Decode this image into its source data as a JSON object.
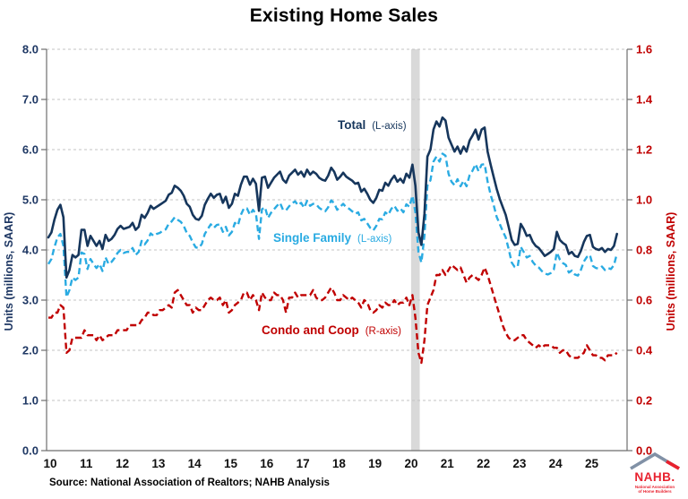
{
  "title": "Existing Home Sales",
  "source": "Source: National Association of Realtors; NAHB Analysis",
  "logo": {
    "name": "NAHB.",
    "tagline_line1": "National Association",
    "tagline_line2": "of Home Builders"
  },
  "colors": {
    "left_axis_text": "#1f3864",
    "right_axis_text": "#c00000",
    "x_axis_text": "#111111",
    "gridline": "#c3c3c3",
    "axis_line": "#6e6e6e",
    "recession_band": "#d9d9d9"
  },
  "chart_data": {
    "type": "line",
    "title": "Existing Home Sales",
    "frequency": "monthly",
    "x_start": "2010-01",
    "x_end": "2025-10",
    "grid": true,
    "recession_band": {
      "start": "2020-02",
      "end": "2020-04"
    },
    "x_axis": {
      "ticks": [
        "10",
        "11",
        "12",
        "13",
        "14",
        "15",
        "16",
        "17",
        "18",
        "19",
        "20",
        "21",
        "22",
        "23",
        "24",
        "25"
      ]
    },
    "left_axis": {
      "label": "Units (millions, SAAR)",
      "min": 0,
      "max": 8,
      "ticks": [
        "0.0",
        "1.0",
        "2.0",
        "3.0",
        "4.0",
        "5.0",
        "6.0",
        "7.0",
        "8.0"
      ]
    },
    "right_axis": {
      "label": "Units (millions, SAAR)",
      "min": 0,
      "max": 1.6,
      "ticks": [
        "0.0",
        "0.2",
        "0.4",
        "0.6",
        "0.8",
        "1.0",
        "1.2",
        "1.4",
        "1.6"
      ]
    },
    "series": [
      {
        "name": "Total",
        "label": "Total",
        "axis_note": "(L-axis)",
        "axis": "left",
        "style": "solid",
        "color": "#16365c",
        "values": [
          4.25,
          4.35,
          4.6,
          4.8,
          4.9,
          4.65,
          3.45,
          3.6,
          3.9,
          3.85,
          3.9,
          4.4,
          4.4,
          4.08,
          4.28,
          4.18,
          4.08,
          4.18,
          4.02,
          4.3,
          4.18,
          4.22,
          4.3,
          4.42,
          4.48,
          4.42,
          4.44,
          4.46,
          4.54,
          4.4,
          4.46,
          4.7,
          4.64,
          4.74,
          4.88,
          4.82,
          4.86,
          4.9,
          4.94,
          4.98,
          5.1,
          5.14,
          5.28,
          5.24,
          5.18,
          5.08,
          4.92,
          4.86,
          4.7,
          4.62,
          4.6,
          4.68,
          4.9,
          5.02,
          5.12,
          5.04,
          5.1,
          5.12,
          4.94,
          5.06,
          4.84,
          4.92,
          5.12,
          5.08,
          5.3,
          5.46,
          5.46,
          5.3,
          5.42,
          5.32,
          4.78,
          5.44,
          5.46,
          5.24,
          5.34,
          5.44,
          5.5,
          5.56,
          5.4,
          5.34,
          5.48,
          5.54,
          5.6,
          5.5,
          5.56,
          5.46,
          5.6,
          5.5,
          5.56,
          5.52,
          5.44,
          5.4,
          5.38,
          5.48,
          5.64,
          5.56,
          5.4,
          5.46,
          5.54,
          5.46,
          5.42,
          5.38,
          5.32,
          5.34,
          5.16,
          5.22,
          5.12,
          5.0,
          4.94,
          5.04,
          5.2,
          5.18,
          5.34,
          5.28,
          5.4,
          5.48,
          5.36,
          5.42,
          5.34,
          5.52,
          5.44,
          5.7,
          5.28,
          4.35,
          4.1,
          4.72,
          5.86,
          6.0,
          6.4,
          6.56,
          6.46,
          6.64,
          6.58,
          6.24,
          6.1,
          5.96,
          6.06,
          5.92,
          6.06,
          5.96,
          6.18,
          6.28,
          6.4,
          6.2,
          6.4,
          6.44,
          5.96,
          5.7,
          5.46,
          5.22,
          5.02,
          4.86,
          4.7,
          4.46,
          4.2,
          4.1,
          4.12,
          4.52,
          4.42,
          4.28,
          4.3,
          4.16,
          4.08,
          4.04,
          3.96,
          3.88,
          3.92,
          3.96,
          4.02,
          4.36,
          4.2,
          4.14,
          4.1,
          3.92,
          3.96,
          3.88,
          3.86,
          3.98,
          4.16,
          4.28,
          4.3,
          4.06,
          4.02,
          4.0,
          4.04,
          3.96,
          4.02,
          4.0,
          4.08,
          4.32
        ]
      },
      {
        "name": "Single Family",
        "label": "Single Family",
        "axis_note": "(L-axis)",
        "axis": "left",
        "style": "dashed",
        "color": "#2aabe2",
        "values": [
          3.72,
          3.82,
          4.05,
          4.25,
          4.32,
          4.08,
          3.06,
          3.2,
          3.45,
          3.4,
          3.45,
          3.95,
          3.92,
          3.62,
          3.82,
          3.72,
          3.64,
          3.72,
          3.58,
          3.85,
          3.72,
          3.76,
          3.84,
          3.94,
          4.0,
          3.94,
          3.96,
          3.96,
          4.04,
          3.9,
          3.96,
          4.18,
          4.11,
          4.19,
          4.33,
          4.28,
          4.32,
          4.34,
          4.38,
          4.41,
          4.52,
          4.57,
          4.65,
          4.6,
          4.56,
          4.48,
          4.34,
          4.28,
          4.15,
          4.05,
          4.04,
          4.12,
          4.32,
          4.42,
          4.51,
          4.44,
          4.5,
          4.51,
          4.36,
          4.46,
          4.29,
          4.36,
          4.54,
          4.49,
          4.7,
          4.83,
          4.83,
          4.7,
          4.8,
          4.72,
          4.22,
          4.81,
          4.85,
          4.64,
          4.74,
          4.81,
          4.88,
          4.94,
          4.8,
          4.79,
          4.87,
          4.93,
          4.97,
          4.89,
          4.94,
          4.84,
          4.98,
          4.88,
          4.92,
          4.91,
          4.84,
          4.8,
          4.77,
          4.85,
          4.99,
          4.93,
          4.8,
          4.86,
          4.92,
          4.85,
          4.82,
          4.77,
          4.72,
          4.75,
          4.59,
          4.62,
          4.53,
          4.44,
          4.39,
          4.48,
          4.62,
          4.61,
          4.75,
          4.7,
          4.82,
          4.88,
          4.78,
          4.83,
          4.75,
          4.91,
          4.86,
          5.08,
          4.75,
          3.96,
          3.75,
          4.28,
          5.28,
          5.39,
          5.76,
          5.86,
          5.76,
          5.92,
          5.88,
          5.52,
          5.36,
          5.29,
          5.41,
          5.27,
          5.38,
          5.27,
          5.49,
          5.58,
          5.71,
          5.57,
          5.7,
          5.71,
          5.36,
          5.1,
          4.9,
          4.66,
          4.52,
          4.38,
          4.25,
          4.02,
          3.75,
          3.66,
          3.67,
          4.06,
          3.96,
          3.85,
          3.88,
          3.76,
          3.69,
          3.65,
          3.58,
          3.53,
          3.51,
          3.54,
          3.61,
          3.95,
          3.81,
          3.74,
          3.7,
          3.55,
          3.59,
          3.51,
          3.49,
          3.6,
          3.77,
          3.86,
          3.9,
          3.68,
          3.64,
          3.63,
          3.67,
          3.6,
          3.64,
          3.62,
          3.7,
          3.93
        ]
      },
      {
        "name": "Condo and Coop",
        "label": "Condo and Coop",
        "axis_note": "(R-axis)",
        "axis": "right",
        "style": "dashed",
        "color": "#c00000",
        "values": [
          0.53,
          0.53,
          0.55,
          0.55,
          0.58,
          0.57,
          0.39,
          0.4,
          0.45,
          0.45,
          0.45,
          0.45,
          0.48,
          0.46,
          0.46,
          0.46,
          0.44,
          0.46,
          0.44,
          0.45,
          0.46,
          0.46,
          0.46,
          0.48,
          0.48,
          0.48,
          0.48,
          0.5,
          0.5,
          0.5,
          0.5,
          0.52,
          0.53,
          0.55,
          0.55,
          0.54,
          0.54,
          0.56,
          0.56,
          0.57,
          0.58,
          0.57,
          0.63,
          0.64,
          0.62,
          0.6,
          0.58,
          0.58,
          0.55,
          0.57,
          0.56,
          0.56,
          0.58,
          0.6,
          0.61,
          0.6,
          0.6,
          0.61,
          0.58,
          0.6,
          0.55,
          0.56,
          0.58,
          0.59,
          0.6,
          0.63,
          0.63,
          0.6,
          0.62,
          0.6,
          0.56,
          0.63,
          0.61,
          0.6,
          0.6,
          0.63,
          0.62,
          0.62,
          0.6,
          0.55,
          0.61,
          0.61,
          0.63,
          0.61,
          0.62,
          0.62,
          0.62,
          0.62,
          0.64,
          0.61,
          0.6,
          0.6,
          0.61,
          0.63,
          0.65,
          0.63,
          0.6,
          0.6,
          0.62,
          0.61,
          0.6,
          0.61,
          0.6,
          0.59,
          0.57,
          0.6,
          0.59,
          0.56,
          0.55,
          0.56,
          0.58,
          0.57,
          0.59,
          0.58,
          0.58,
          0.6,
          0.58,
          0.59,
          0.59,
          0.61,
          0.58,
          0.62,
          0.53,
          0.39,
          0.35,
          0.44,
          0.58,
          0.61,
          0.64,
          0.7,
          0.7,
          0.72,
          0.7,
          0.72,
          0.74,
          0.73,
          0.72,
          0.73,
          0.7,
          0.67,
          0.69,
          0.7,
          0.69,
          0.68,
          0.7,
          0.73,
          0.7,
          0.66,
          0.62,
          0.58,
          0.54,
          0.5,
          0.47,
          0.45,
          0.44,
          0.44,
          0.45,
          0.46,
          0.46,
          0.44,
          0.43,
          0.42,
          0.41,
          0.42,
          0.41,
          0.42,
          0.42,
          0.42,
          0.41,
          0.41,
          0.39,
          0.4,
          0.4,
          0.38,
          0.37,
          0.37,
          0.37,
          0.38,
          0.39,
          0.42,
          0.4,
          0.38,
          0.38,
          0.37,
          0.37,
          0.36,
          0.38,
          0.38,
          0.38,
          0.39
        ]
      }
    ]
  }
}
